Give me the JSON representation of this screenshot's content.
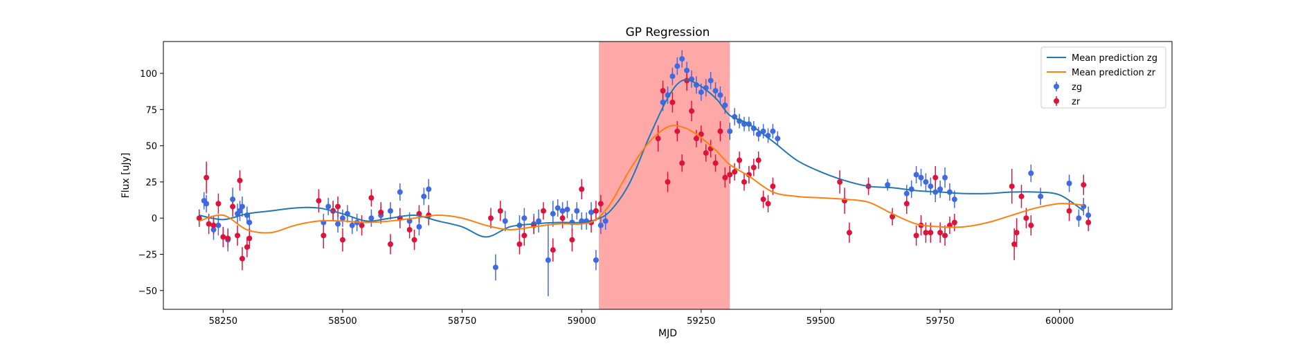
{
  "chart_data": {
    "type": "scatter",
    "title": "GP Regression",
    "xlabel": "MJD",
    "ylabel": "Flux [uJy]",
    "xlim": [
      58125,
      60235
    ],
    "ylim": [
      -63,
      122
    ],
    "xticks": [
      58250,
      58500,
      58750,
      59000,
      59250,
      59500,
      59750,
      60000
    ],
    "yticks": [
      -50,
      -25,
      0,
      25,
      50,
      75,
      100
    ],
    "grid": false,
    "legend_position": "top-right",
    "shaded_span": {
      "x0": 59036,
      "x1": 59310,
      "color": "#ff9f9f"
    },
    "lines": [
      {
        "name": "Mean prediction zg",
        "color": "#1f77b4",
        "x": [
          58200,
          58250,
          58300,
          58350,
          58400,
          58450,
          58500,
          58550,
          58600,
          58650,
          58700,
          58750,
          58800,
          58850,
          58900,
          58950,
          59000,
          59030,
          59060,
          59100,
          59140,
          59180,
          59210,
          59240,
          59280,
          59310,
          59350,
          59400,
          59450,
          59500,
          59550,
          59600,
          59650,
          59700,
          59750,
          59800,
          59850,
          59900,
          59950,
          60000,
          60050
        ],
        "y": [
          2,
          -1,
          3,
          5,
          7,
          7,
          3,
          -2,
          0,
          2,
          -2,
          -6,
          -13,
          -6,
          -4,
          -3,
          -3,
          -1,
          5,
          24,
          55,
          83,
          95,
          93,
          83,
          71,
          65,
          53,
          40,
          32,
          26,
          22,
          21,
          19,
          18,
          17,
          17,
          18,
          18,
          16,
          5
        ]
      },
      {
        "name": "Mean prediction zr",
        "color": "#ff7f0e",
        "x": [
          58200,
          58250,
          58300,
          58350,
          58400,
          58450,
          58500,
          58550,
          58600,
          58650,
          58700,
          58750,
          58800,
          58850,
          58900,
          58950,
          59000,
          59030,
          59060,
          59100,
          59140,
          59180,
          59210,
          59240,
          59280,
          59310,
          59350,
          59400,
          59450,
          59500,
          59550,
          59600,
          59650,
          59700,
          59750,
          59800,
          59850,
          59900,
          59950,
          60000,
          60050
        ],
        "y": [
          -2,
          2,
          -8,
          -10,
          -5,
          -2,
          -2,
          -3,
          -2,
          0,
          2,
          0,
          -5,
          -8,
          -6,
          -4,
          -4,
          -1,
          10,
          33,
          52,
          63,
          63,
          58,
          47,
          37,
          29,
          18,
          15,
          14,
          13,
          11,
          3,
          -4,
          -6,
          -6,
          -3,
          2,
          7,
          10,
          9
        ]
      }
    ],
    "series": [
      {
        "name": "zg",
        "color": "#4169e1",
        "x": [
          58210,
          58215,
          58230,
          58240,
          58260,
          58270,
          58280,
          58285,
          58290,
          58300,
          58305,
          58460,
          58470,
          58480,
          58490,
          58500,
          58510,
          58520,
          58530,
          58560,
          58580,
          58600,
          58620,
          58640,
          58660,
          58670,
          58680,
          58820,
          58840,
          58870,
          58880,
          58900,
          58910,
          58930,
          58940,
          58950,
          58960,
          58970,
          58980,
          58990,
          59000,
          59010,
          59020,
          59030,
          59040,
          59050,
          59170,
          59180,
          59190,
          59200,
          59210,
          59220,
          59230,
          59240,
          59250,
          59260,
          59270,
          59280,
          59290,
          59300,
          59310,
          59320,
          59330,
          59340,
          59350,
          59360,
          59370,
          59380,
          59390,
          59400,
          59410,
          59640,
          59680,
          59690,
          59700,
          59710,
          59720,
          59730,
          59740,
          59750,
          59760,
          59770,
          59780,
          59940,
          59960,
          60020,
          60040,
          60050,
          60060
        ],
        "y": [
          12,
          10,
          -8,
          -5,
          -15,
          13,
          3,
          5,
          8,
          2,
          -3,
          -3,
          8,
          5,
          -4,
          0,
          3,
          -5,
          -3,
          0,
          2,
          5,
          18,
          -2,
          -6,
          15,
          20,
          -34,
          -2,
          -5,
          0,
          -4,
          -2,
          -29,
          3,
          7,
          5,
          6,
          -3,
          5,
          -2,
          -2,
          4,
          -29,
          -5,
          -2,
          80,
          85,
          98,
          105,
          110,
          102,
          96,
          92,
          87,
          90,
          95,
          88,
          85,
          78,
          60,
          70,
          67,
          65,
          65,
          62,
          58,
          60,
          57,
          60,
          55,
          23,
          17,
          20,
          30,
          28,
          25,
          22,
          18,
          20,
          28,
          18,
          13,
          31,
          15,
          24,
          0,
          8,
          2
        ],
        "err": [
          6,
          6,
          7,
          7,
          8,
          8,
          7,
          7,
          7,
          6,
          6,
          6,
          6,
          6,
          6,
          6,
          6,
          6,
          6,
          6,
          6,
          6,
          6,
          6,
          6,
          6,
          7,
          9,
          7,
          7,
          7,
          7,
          8,
          25,
          9,
          6,
          6,
          6,
          6,
          6,
          6,
          6,
          7,
          7,
          6,
          6,
          6,
          6,
          6,
          6,
          6,
          6,
          6,
          6,
          6,
          6,
          6,
          6,
          6,
          6,
          6,
          6,
          5,
          5,
          5,
          5,
          5,
          5,
          5,
          5,
          5,
          4,
          6,
          6,
          6,
          6,
          6,
          6,
          7,
          6,
          7,
          6,
          6,
          6,
          6,
          6,
          6,
          6,
          6
        ]
      },
      {
        "name": "zr",
        "color": "#dc143c",
        "x": [
          58200,
          58215,
          58220,
          58230,
          58240,
          58250,
          58260,
          58270,
          58280,
          58285,
          58290,
          58300,
          58305,
          58450,
          58460,
          58480,
          58490,
          58500,
          58540,
          58560,
          58580,
          58600,
          58620,
          58640,
          58650,
          58660,
          58680,
          58810,
          58830,
          58870,
          58880,
          58900,
          58920,
          58940,
          58960,
          58980,
          59000,
          59020,
          59030,
          59040,
          59160,
          59170,
          59180,
          59190,
          59200,
          59210,
          59220,
          59230,
          59240,
          59250,
          59260,
          59270,
          59280,
          59290,
          59300,
          59310,
          59320,
          59330,
          59340,
          59350,
          59360,
          59370,
          59380,
          59390,
          59400,
          59540,
          59550,
          59560,
          59600,
          59650,
          59680,
          59700,
          59710,
          59720,
          59730,
          59740,
          59750,
          59760,
          59770,
          59780,
          59900,
          59905,
          59910,
          59920,
          59930,
          59940,
          60020,
          60050,
          60060
        ],
        "y": [
          0,
          28,
          -4,
          -5,
          10,
          -13,
          -14,
          8,
          -12,
          26,
          -28,
          -20,
          -14,
          12,
          -12,
          5,
          8,
          -15,
          -5,
          14,
          4,
          -18,
          0,
          -8,
          -15,
          3,
          2,
          0,
          5,
          -18,
          -12,
          -5,
          5,
          -22,
          0,
          -15,
          20,
          -3,
          5,
          10,
          55,
          88,
          25,
          80,
          60,
          38,
          95,
          74,
          55,
          58,
          45,
          48,
          38,
          60,
          28,
          30,
          32,
          40,
          25,
          30,
          35,
          40,
          13,
          10,
          22,
          25,
          12,
          -10,
          22,
          1,
          10,
          -12,
          -5,
          -10,
          -10,
          28,
          -10,
          -12,
          -5,
          -3,
          22,
          -18,
          -10,
          15,
          0,
          -5,
          5,
          23,
          -3
        ],
        "err": [
          6,
          11,
          7,
          6,
          7,
          7,
          6,
          7,
          7,
          7,
          8,
          7,
          7,
          8,
          9,
          7,
          7,
          8,
          7,
          6,
          7,
          7,
          7,
          6,
          7,
          6,
          7,
          7,
          7,
          7,
          7,
          6,
          6,
          8,
          7,
          8,
          7,
          7,
          7,
          6,
          9,
          7,
          7,
          7,
          7,
          6,
          7,
          7,
          6,
          6,
          6,
          6,
          6,
          7,
          7,
          6,
          6,
          6,
          6,
          6,
          6,
          6,
          6,
          6,
          6,
          8,
          9,
          7,
          6,
          6,
          7,
          7,
          7,
          7,
          7,
          8,
          7,
          7,
          6,
          6,
          12,
          11,
          10,
          8,
          7,
          7,
          7,
          7,
          6
        ]
      }
    ]
  }
}
